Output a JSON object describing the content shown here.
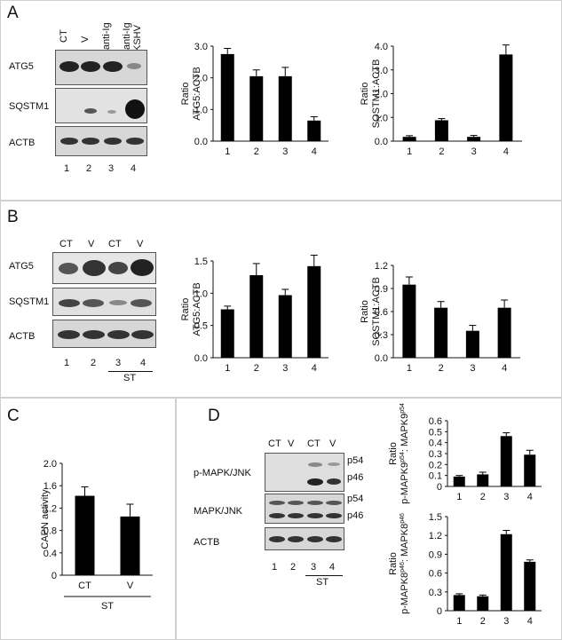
{
  "panels": {
    "A": {
      "letter": "A",
      "lanes": [
        "CT",
        "V",
        "anti-Ig",
        "anti-Ig KSHV"
      ],
      "lane_line1": [
        "CT",
        "V",
        "anti-Ig",
        "anti-Ig"
      ],
      "lane_line2": [
        "",
        "",
        "",
        "KSHV"
      ],
      "blots": [
        "ATG5",
        "SQSTM1",
        "ACTB"
      ],
      "lane_numbers": [
        "1",
        "2",
        "3",
        "4"
      ]
    },
    "B": {
      "letter": "B",
      "lanes": [
        "CT",
        "V",
        "CT",
        "V"
      ],
      "blots": [
        "ATG5",
        "SQSTM1",
        "ACTB"
      ],
      "lane_numbers": [
        "1",
        "2",
        "3",
        "4"
      ],
      "group_label": "ST"
    },
    "C": {
      "letter": "C"
    },
    "D": {
      "letter": "D",
      "lanes": [
        "CT",
        "V",
        "CT",
        "V"
      ],
      "blots": [
        "p-MAPK/JNK",
        "MAPK/JNK",
        "ACTB"
      ],
      "bands": [
        "p54",
        "p46",
        "p54",
        "p46"
      ],
      "lane_numbers": [
        "1",
        "2",
        "3",
        "4"
      ],
      "group_label": "ST"
    }
  },
  "chart_data": [
    {
      "id": "A1",
      "type": "bar",
      "categories": [
        "1",
        "2",
        "3",
        "4"
      ],
      "values": [
        2.75,
        2.05,
        2.05,
        0.65
      ],
      "errors": [
        0.18,
        0.2,
        0.28,
        0.12
      ],
      "ylabel": [
        "Ratio",
        "ATG5:ACTB"
      ],
      "ylim": [
        0,
        3.0
      ],
      "yticks": [
        "0.0",
        "1.0",
        "2.0",
        "3.0"
      ],
      "ytick_values": [
        0,
        1,
        2,
        3
      ],
      "grid": false
    },
    {
      "id": "A2",
      "type": "bar",
      "categories": [
        "1",
        "2",
        "3",
        "4"
      ],
      "values": [
        0.18,
        0.88,
        0.18,
        3.65
      ],
      "errors": [
        0.05,
        0.07,
        0.06,
        0.4
      ],
      "ylabel": [
        "Ratio",
        "SQSTM1:ACTB"
      ],
      "ylim": [
        0,
        4.0
      ],
      "yticks": [
        "0.0",
        "1.0",
        "2.0",
        "3.0",
        "4.0"
      ],
      "ytick_values": [
        0,
        1,
        2,
        3,
        4
      ],
      "grid": false
    },
    {
      "id": "B1",
      "type": "bar",
      "categories": [
        "1",
        "2",
        "3",
        "4"
      ],
      "values": [
        0.75,
        1.28,
        0.97,
        1.42
      ],
      "errors": [
        0.05,
        0.18,
        0.09,
        0.17
      ],
      "ylabel": [
        "Ratio",
        "ATG5:ACTB"
      ],
      "ylim": [
        0,
        1.5
      ],
      "yticks": [
        "0.0",
        "0.5",
        "1.0",
        "1.5"
      ],
      "ytick_values": [
        0,
        0.5,
        1.0,
        1.5
      ],
      "grid": false
    },
    {
      "id": "B2",
      "type": "bar",
      "categories": [
        "1",
        "2",
        "3",
        "4"
      ],
      "values": [
        0.95,
        0.65,
        0.35,
        0.65
      ],
      "errors": [
        0.1,
        0.08,
        0.07,
        0.1
      ],
      "ylabel": [
        "Ratio",
        "SQSTM1:ACTB"
      ],
      "ylim": [
        0,
        1.2
      ],
      "yticks": [
        "0.0",
        "0.3",
        "0.6",
        "0.9",
        "1.2"
      ],
      "ytick_values": [
        0,
        0.3,
        0.6,
        0.9,
        1.2
      ],
      "grid": false
    },
    {
      "id": "C1",
      "type": "bar",
      "categories": [
        "CT",
        "V"
      ],
      "values": [
        1.42,
        1.05
      ],
      "errors": [
        0.16,
        0.22
      ],
      "ylabel": [
        "CAPN activity"
      ],
      "ylim": [
        0,
        2.0
      ],
      "yticks": [
        "0",
        "0.4",
        "0.8",
        "1.2",
        "1.6",
        "2.0"
      ],
      "ytick_values": [
        0,
        0.4,
        0.8,
        1.2,
        1.6,
        2.0
      ],
      "group_label": "ST",
      "grid": false
    },
    {
      "id": "D1",
      "type": "bar",
      "categories": [
        "1",
        "2",
        "3",
        "4"
      ],
      "values": [
        0.09,
        0.11,
        0.46,
        0.29
      ],
      "errors": [
        0.01,
        0.02,
        0.03,
        0.04
      ],
      "ylabel": [
        "Ratio",
        "p-MAPK9",
        "p54",
        ": MAPK9",
        "p54"
      ],
      "ylim": [
        0,
        0.6
      ],
      "yticks": [
        "0",
        "0.1",
        "0.2",
        "0.3",
        "0.4",
        "0.5",
        "0.6"
      ],
      "ytick_values": [
        0,
        0.1,
        0.2,
        0.3,
        0.4,
        0.5,
        0.6
      ],
      "grid": false
    },
    {
      "id": "D2",
      "type": "bar",
      "categories": [
        "1",
        "2",
        "3",
        "4"
      ],
      "values": [
        0.25,
        0.23,
        1.22,
        0.78
      ],
      "errors": [
        0.02,
        0.02,
        0.06,
        0.03
      ],
      "ylabel": [
        "Ratio",
        "p-MAPK8",
        "p46",
        ": MAPK8",
        "p46"
      ],
      "ylim": [
        0,
        1.5
      ],
      "yticks": [
        "0",
        "0.3",
        "0.6",
        "0.9",
        "1.2",
        "1.5"
      ],
      "ytick_values": [
        0,
        0.3,
        0.6,
        0.9,
        1.2,
        1.5
      ],
      "grid": false
    }
  ]
}
